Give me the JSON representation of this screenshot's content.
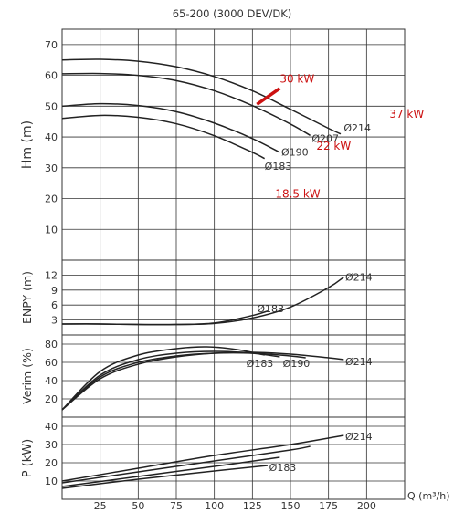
{
  "title": "65-200 (3000 DEV/DK)",
  "colors": {
    "curve": "#222222",
    "grid": "#333333",
    "text": "#333333",
    "accent": "#cc1111"
  },
  "x_axis": {
    "label": "Q (m³/h)",
    "ticks": [
      25,
      50,
      75,
      100,
      125,
      150,
      175,
      200
    ],
    "range": [
      0,
      225
    ]
  },
  "chart_data": [
    {
      "type": "line",
      "title": "",
      "xlabel": "Q (m³/h)",
      "ylabel": "Hm (m)",
      "xlim": [
        0,
        225
      ],
      "ylim": [
        0,
        75
      ],
      "yticks": [
        10,
        20,
        30,
        40,
        50,
        60,
        70
      ],
      "grid": true,
      "series": [
        {
          "name": "Ø214",
          "x": [
            0,
            25,
            50,
            75,
            100,
            125,
            150,
            175,
            183
          ],
          "y": [
            65,
            65.2,
            64.6,
            62.8,
            59.6,
            55,
            49,
            42.8,
            41
          ]
        },
        {
          "name": "Ø207",
          "x": [
            0,
            25,
            50,
            75,
            100,
            125,
            150,
            163
          ],
          "y": [
            60.5,
            60.6,
            60,
            58.3,
            55,
            50.2,
            44.2,
            40.5
          ]
        },
        {
          "name": "Ø190",
          "x": [
            0,
            25,
            50,
            75,
            100,
            125,
            143
          ],
          "y": [
            50,
            50.8,
            50.2,
            48.2,
            44.5,
            39.5,
            35
          ]
        },
        {
          "name": "Ø183",
          "x": [
            0,
            25,
            50,
            75,
            100,
            125,
            133
          ],
          "y": [
            46,
            47,
            46.4,
            44.3,
            40.4,
            35,
            33
          ]
        }
      ],
      "series_labels": [
        "Ø214",
        "Ø207",
        "Ø190",
        "Ø183"
      ],
      "power_marker": {
        "x": [
          128,
          143
        ],
        "y": [
          50.6,
          55.8
        ]
      },
      "annotations": [
        "30 kW",
        "37 kW",
        "22 kW",
        "18.5 kW"
      ]
    },
    {
      "type": "line",
      "title": "",
      "xlabel": "Q (m³/h)",
      "ylabel": "ENPY (m)",
      "xlim": [
        0,
        225
      ],
      "ylim": [
        0,
        15
      ],
      "yticks": [
        3,
        6,
        9,
        12
      ],
      "grid": true,
      "series": [
        {
          "name": "Ø214",
          "x": [
            0,
            25,
            50,
            75,
            100,
            125,
            150,
            175,
            185
          ],
          "y": [
            2.2,
            2.2,
            2.1,
            2.1,
            2.3,
            3.4,
            5.6,
            9.5,
            11.6
          ]
        },
        {
          "name": "Ø183",
          "x": [
            0,
            25,
            50,
            75,
            100,
            125,
            135
          ],
          "y": [
            2.2,
            2.2,
            2.1,
            2.1,
            2.4,
            3.9,
            4.8
          ]
        }
      ],
      "series_labels": [
        "Ø214",
        "Ø183"
      ]
    },
    {
      "type": "line",
      "title": "",
      "xlabel": "Q (m³/h)",
      "ylabel": "Verim (%)",
      "xlim": [
        0,
        225
      ],
      "ylim": [
        0,
        90
      ],
      "yticks": [
        20,
        40,
        60,
        80
      ],
      "grid": true,
      "series": [
        {
          "name": "Ø214",
          "x": [
            0,
            25,
            50,
            75,
            100,
            125,
            150,
            175,
            185
          ],
          "y": [
            8,
            42,
            58,
            66,
            70,
            71,
            69,
            65,
            63
          ]
        },
        {
          "name": "Ø207",
          "x": [
            0,
            25,
            50,
            75,
            100,
            125,
            150,
            160
          ],
          "y": [
            8,
            44,
            60,
            67,
            70,
            70,
            67,
            65
          ]
        },
        {
          "name": "Ø190",
          "x": [
            0,
            25,
            50,
            75,
            100,
            125,
            143
          ],
          "y": [
            8,
            46,
            63,
            70,
            72,
            70,
            66
          ]
        },
        {
          "name": "Ø183",
          "x": [
            0,
            25,
            50,
            75,
            95,
            115,
            133
          ],
          "y": [
            8,
            50,
            68,
            75,
            77,
            74,
            68
          ]
        }
      ],
      "series_labels": [
        "Ø183",
        "Ø190",
        "Ø214"
      ]
    },
    {
      "type": "line",
      "title": "",
      "xlabel": "Q (m³/h)",
      "ylabel": "P (kW)",
      "xlim": [
        0,
        225
      ],
      "ylim": [
        0,
        45
      ],
      "yticks": [
        10,
        20,
        30,
        40
      ],
      "grid": true,
      "series": [
        {
          "name": "Ø214",
          "x": [
            0,
            50,
            100,
            150,
            185
          ],
          "y": [
            10,
            17,
            24,
            30,
            35
          ]
        },
        {
          "name": "Ø207",
          "x": [
            0,
            50,
            100,
            150,
            163
          ],
          "y": [
            9,
            15,
            21,
            27,
            29
          ]
        },
        {
          "name": "Ø190",
          "x": [
            0,
            50,
            100,
            143
          ],
          "y": [
            7,
            12.5,
            18,
            23
          ]
        },
        {
          "name": "Ø183",
          "x": [
            0,
            50,
            100,
            135
          ],
          "y": [
            6,
            11,
            15.5,
            18.5
          ]
        }
      ],
      "series_labels": [
        "Ø214",
        "Ø183"
      ]
    }
  ]
}
